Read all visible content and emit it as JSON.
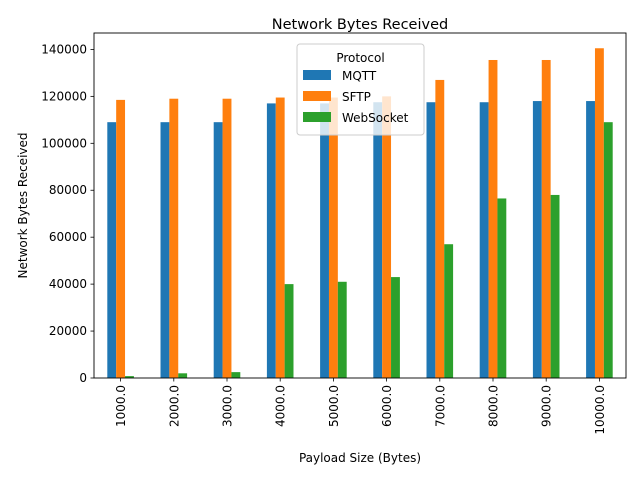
{
  "chart_data": {
    "type": "bar",
    "title": "Network Bytes Received",
    "xlabel": "Payload Size (Bytes)",
    "ylabel": "Network Bytes Received",
    "categories": [
      "1000.0",
      "2000.0",
      "3000.0",
      "4000.0",
      "5000.0",
      "6000.0",
      "7000.0",
      "8000.0",
      "9000.0",
      "10000.0"
    ],
    "ylim": [
      0,
      147000
    ],
    "yticks": [
      0,
      20000,
      40000,
      60000,
      80000,
      100000,
      120000,
      140000
    ],
    "ytick_labels": [
      "0",
      "20000",
      "40000",
      "60000",
      "80000",
      "100000",
      "120000",
      "140000"
    ],
    "legend_title": "Protocol",
    "legend_position": "top-center",
    "grid": false,
    "series": [
      {
        "name": "MQTT",
        "color": "#1f77b4",
        "values": [
          109000,
          109000,
          109000,
          117000,
          117000,
          117500,
          117500,
          117500,
          118000,
          118000
        ]
      },
      {
        "name": "SFTP",
        "color": "#ff7f0e",
        "values": [
          118500,
          119000,
          119000,
          119500,
          119500,
          120000,
          127000,
          135500,
          135500,
          140500
        ]
      },
      {
        "name": "WebSocket",
        "color": "#2ca02c",
        "values": [
          800,
          2000,
          2500,
          40000,
          41000,
          43000,
          57000,
          76500,
          78000,
          109000
        ]
      }
    ]
  }
}
